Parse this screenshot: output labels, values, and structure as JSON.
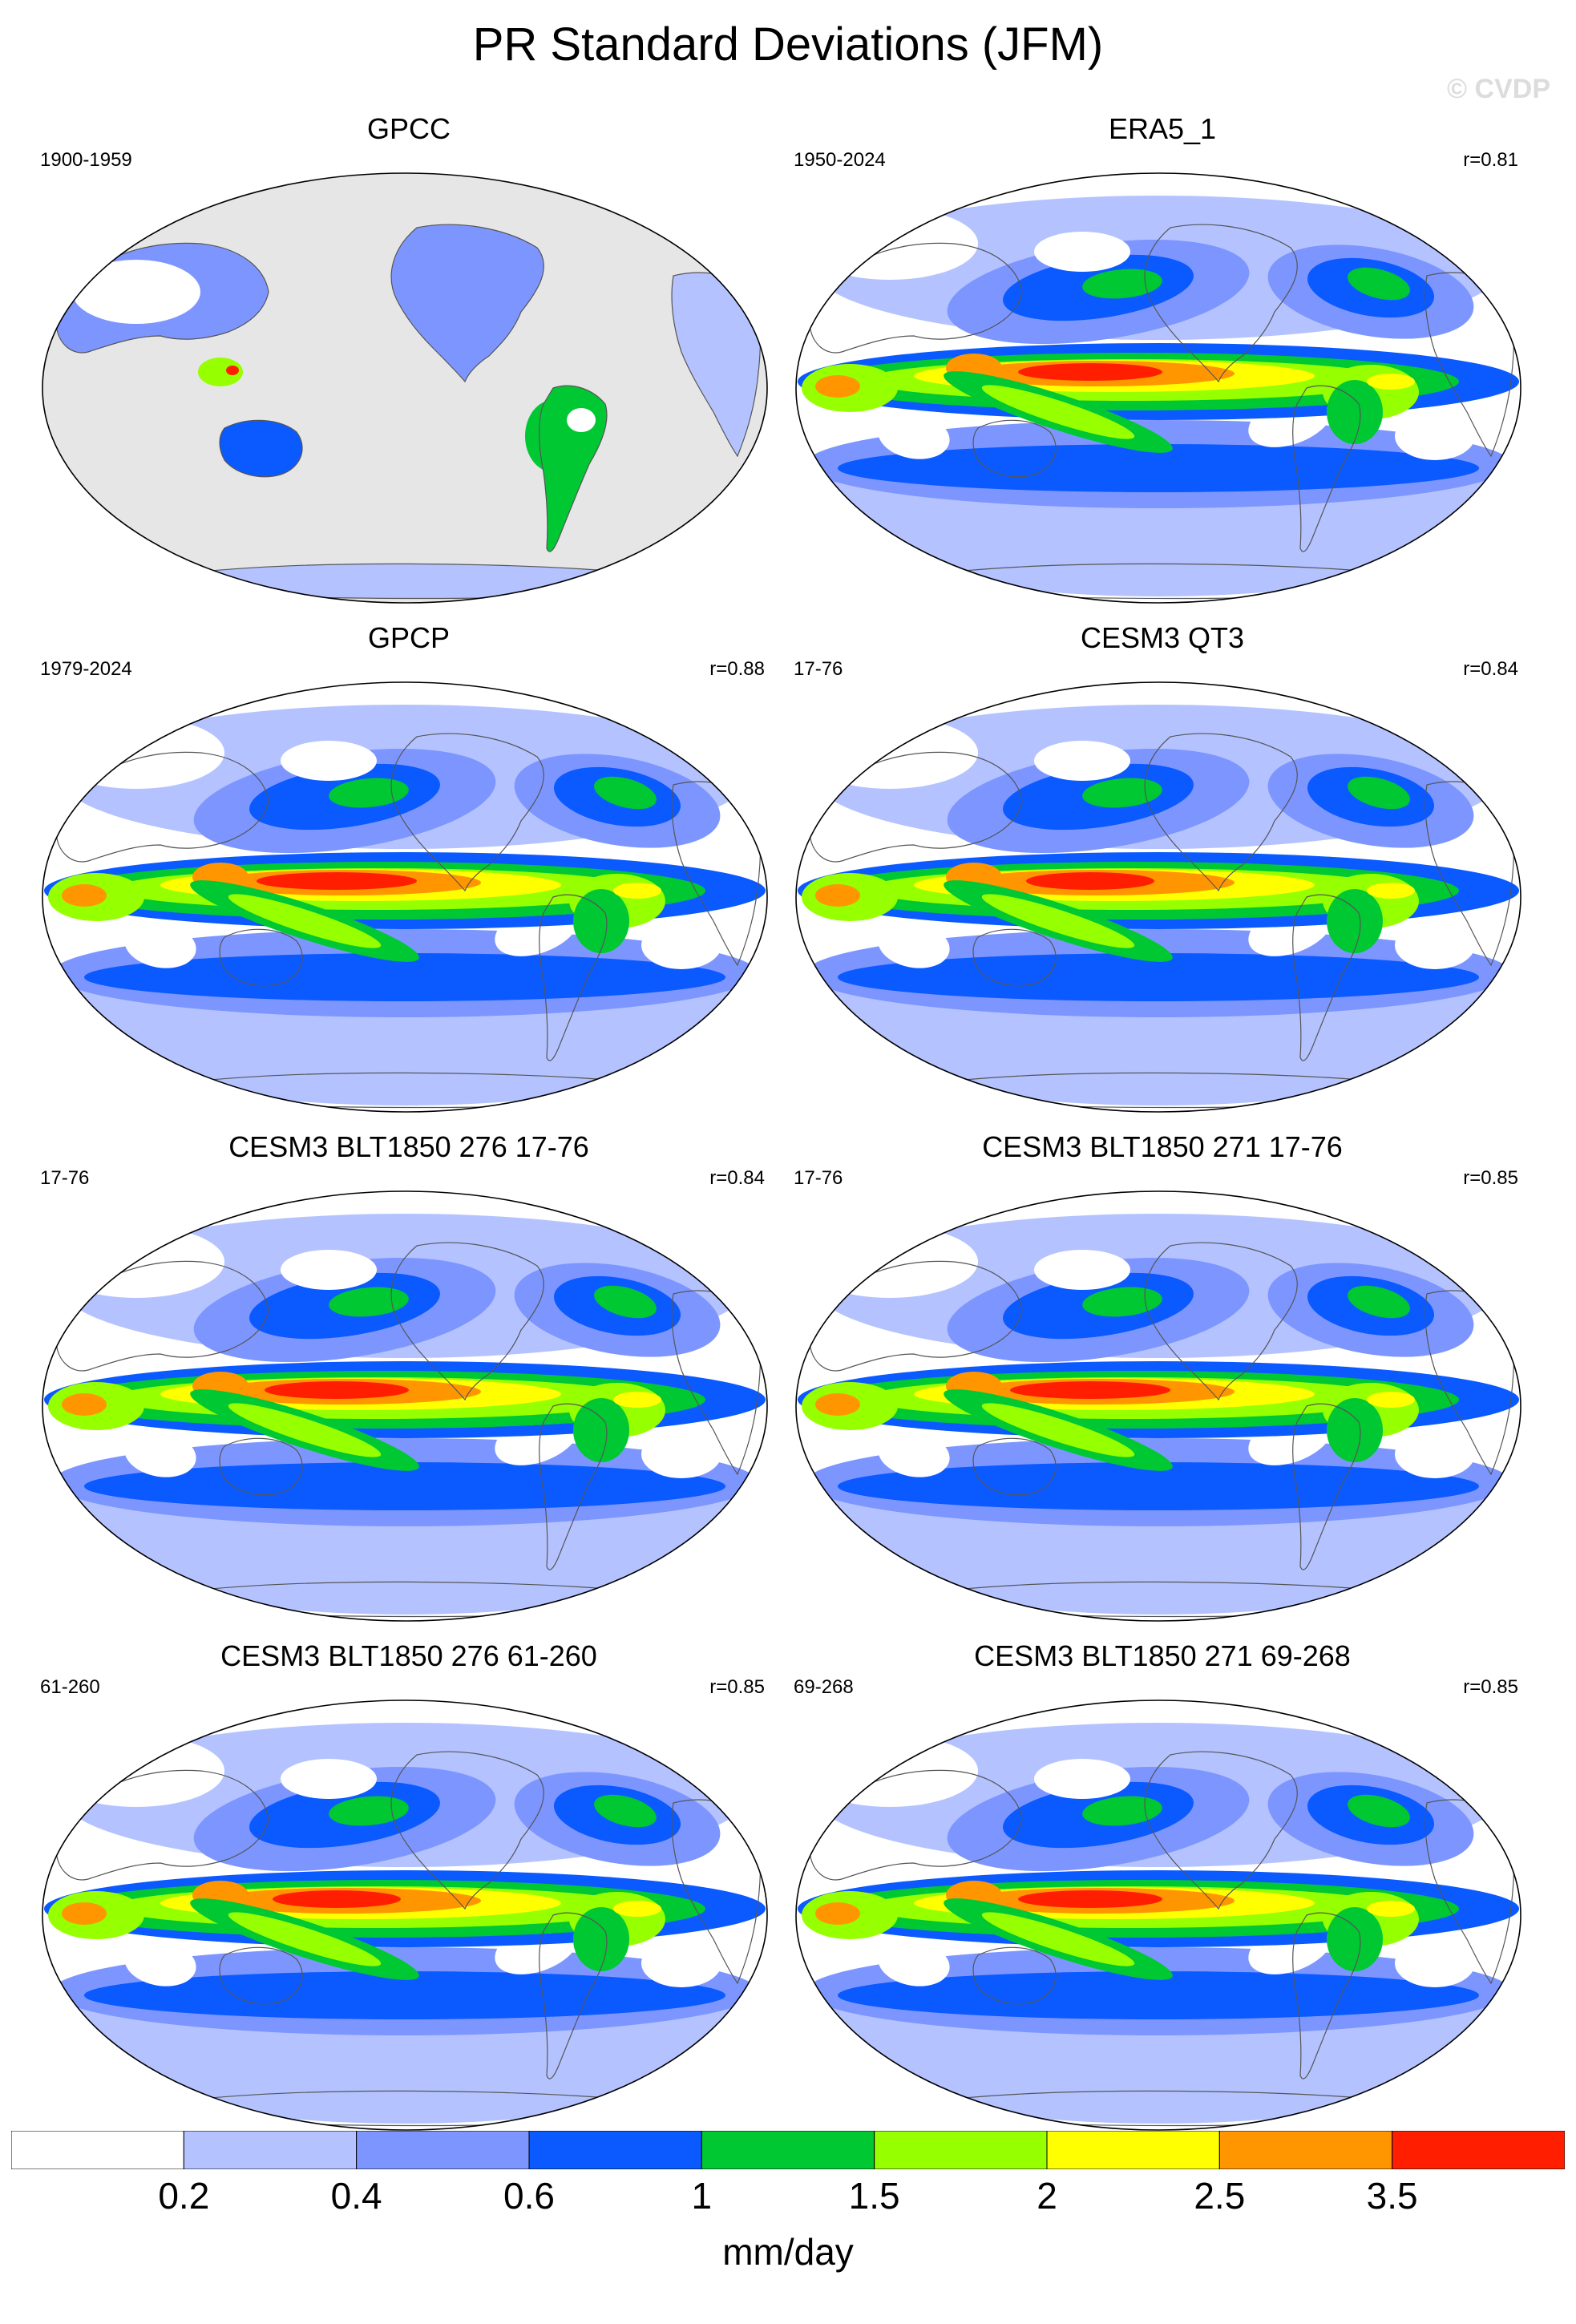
{
  "title": "PR Standard Deviations (JFM)",
  "watermark": "© CVDP",
  "panels": [
    {
      "name": "GPCC",
      "period": "1900-1959",
      "corr": "",
      "coverage": "land"
    },
    {
      "name": "ERA5_1",
      "period": "1950-2024",
      "corr": "r=0.81",
      "coverage": "global"
    },
    {
      "name": "GPCP",
      "period": "1979-2024",
      "corr": "r=0.88",
      "coverage": "global"
    },
    {
      "name": "CESM3 QT3",
      "period": "17-76",
      "corr": "r=0.84",
      "coverage": "global"
    },
    {
      "name": "CESM3 BLT1850 276 17-76",
      "period": "17-76",
      "corr": "r=0.84",
      "coverage": "global"
    },
    {
      "name": "CESM3 BLT1850 271 17-76",
      "period": "17-76",
      "corr": "r=0.85",
      "coverage": "global"
    },
    {
      "name": "CESM3 BLT1850 276 61-260",
      "period": "61-260",
      "corr": "r=0.85",
      "coverage": "global"
    },
    {
      "name": "CESM3 BLT1850 271 69-268",
      "period": "69-268",
      "corr": "r=0.85",
      "coverage": "global"
    }
  ],
  "colorbar": {
    "labels": [
      "0.2",
      "0.4",
      "0.6",
      "1",
      "1.5",
      "2",
      "2.5",
      "3.5"
    ],
    "colors": [
      "#ffffff",
      "#b4c3ff",
      "#7d96ff",
      "#0a5aff",
      "#00c832",
      "#96ff00",
      "#ffff00",
      "#ff9600",
      "#ff1e00"
    ],
    "units": "mm/day"
  },
  "colors": {
    "missing": "#e6e6e6",
    "coast": "#555555"
  }
}
